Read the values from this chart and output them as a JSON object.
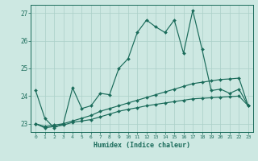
{
  "xlabel": "Humidex (Indice chaleur)",
  "xlim": [
    -0.5,
    23.5
  ],
  "ylim": [
    22.7,
    27.3
  ],
  "yticks": [
    23,
    24,
    25,
    26,
    27
  ],
  "xticks": [
    0,
    1,
    2,
    3,
    4,
    5,
    6,
    7,
    8,
    9,
    10,
    11,
    12,
    13,
    14,
    15,
    16,
    17,
    18,
    19,
    20,
    21,
    22,
    23
  ],
  "bg_color": "#cde8e2",
  "grid_color": "#aacfc8",
  "line_color": "#1a6b5a",
  "line1_y": [
    24.2,
    23.2,
    22.85,
    23.0,
    24.3,
    23.55,
    23.65,
    24.1,
    24.05,
    25.0,
    25.35,
    26.3,
    26.75,
    26.5,
    26.3,
    26.75,
    25.55,
    27.1,
    25.7,
    24.2,
    24.25,
    24.1,
    24.25,
    23.65
  ],
  "line2_y": [
    23.0,
    22.9,
    22.95,
    23.0,
    23.1,
    23.2,
    23.3,
    23.45,
    23.55,
    23.65,
    23.75,
    23.85,
    23.95,
    24.05,
    24.15,
    24.25,
    24.35,
    24.45,
    24.5,
    24.55,
    24.6,
    24.62,
    24.65,
    23.65
  ],
  "line3_y": [
    23.0,
    22.85,
    22.9,
    22.95,
    23.05,
    23.1,
    23.15,
    23.25,
    23.35,
    23.45,
    23.52,
    23.58,
    23.65,
    23.7,
    23.75,
    23.8,
    23.85,
    23.9,
    23.92,
    23.94,
    23.96,
    23.98,
    24.0,
    23.65
  ]
}
